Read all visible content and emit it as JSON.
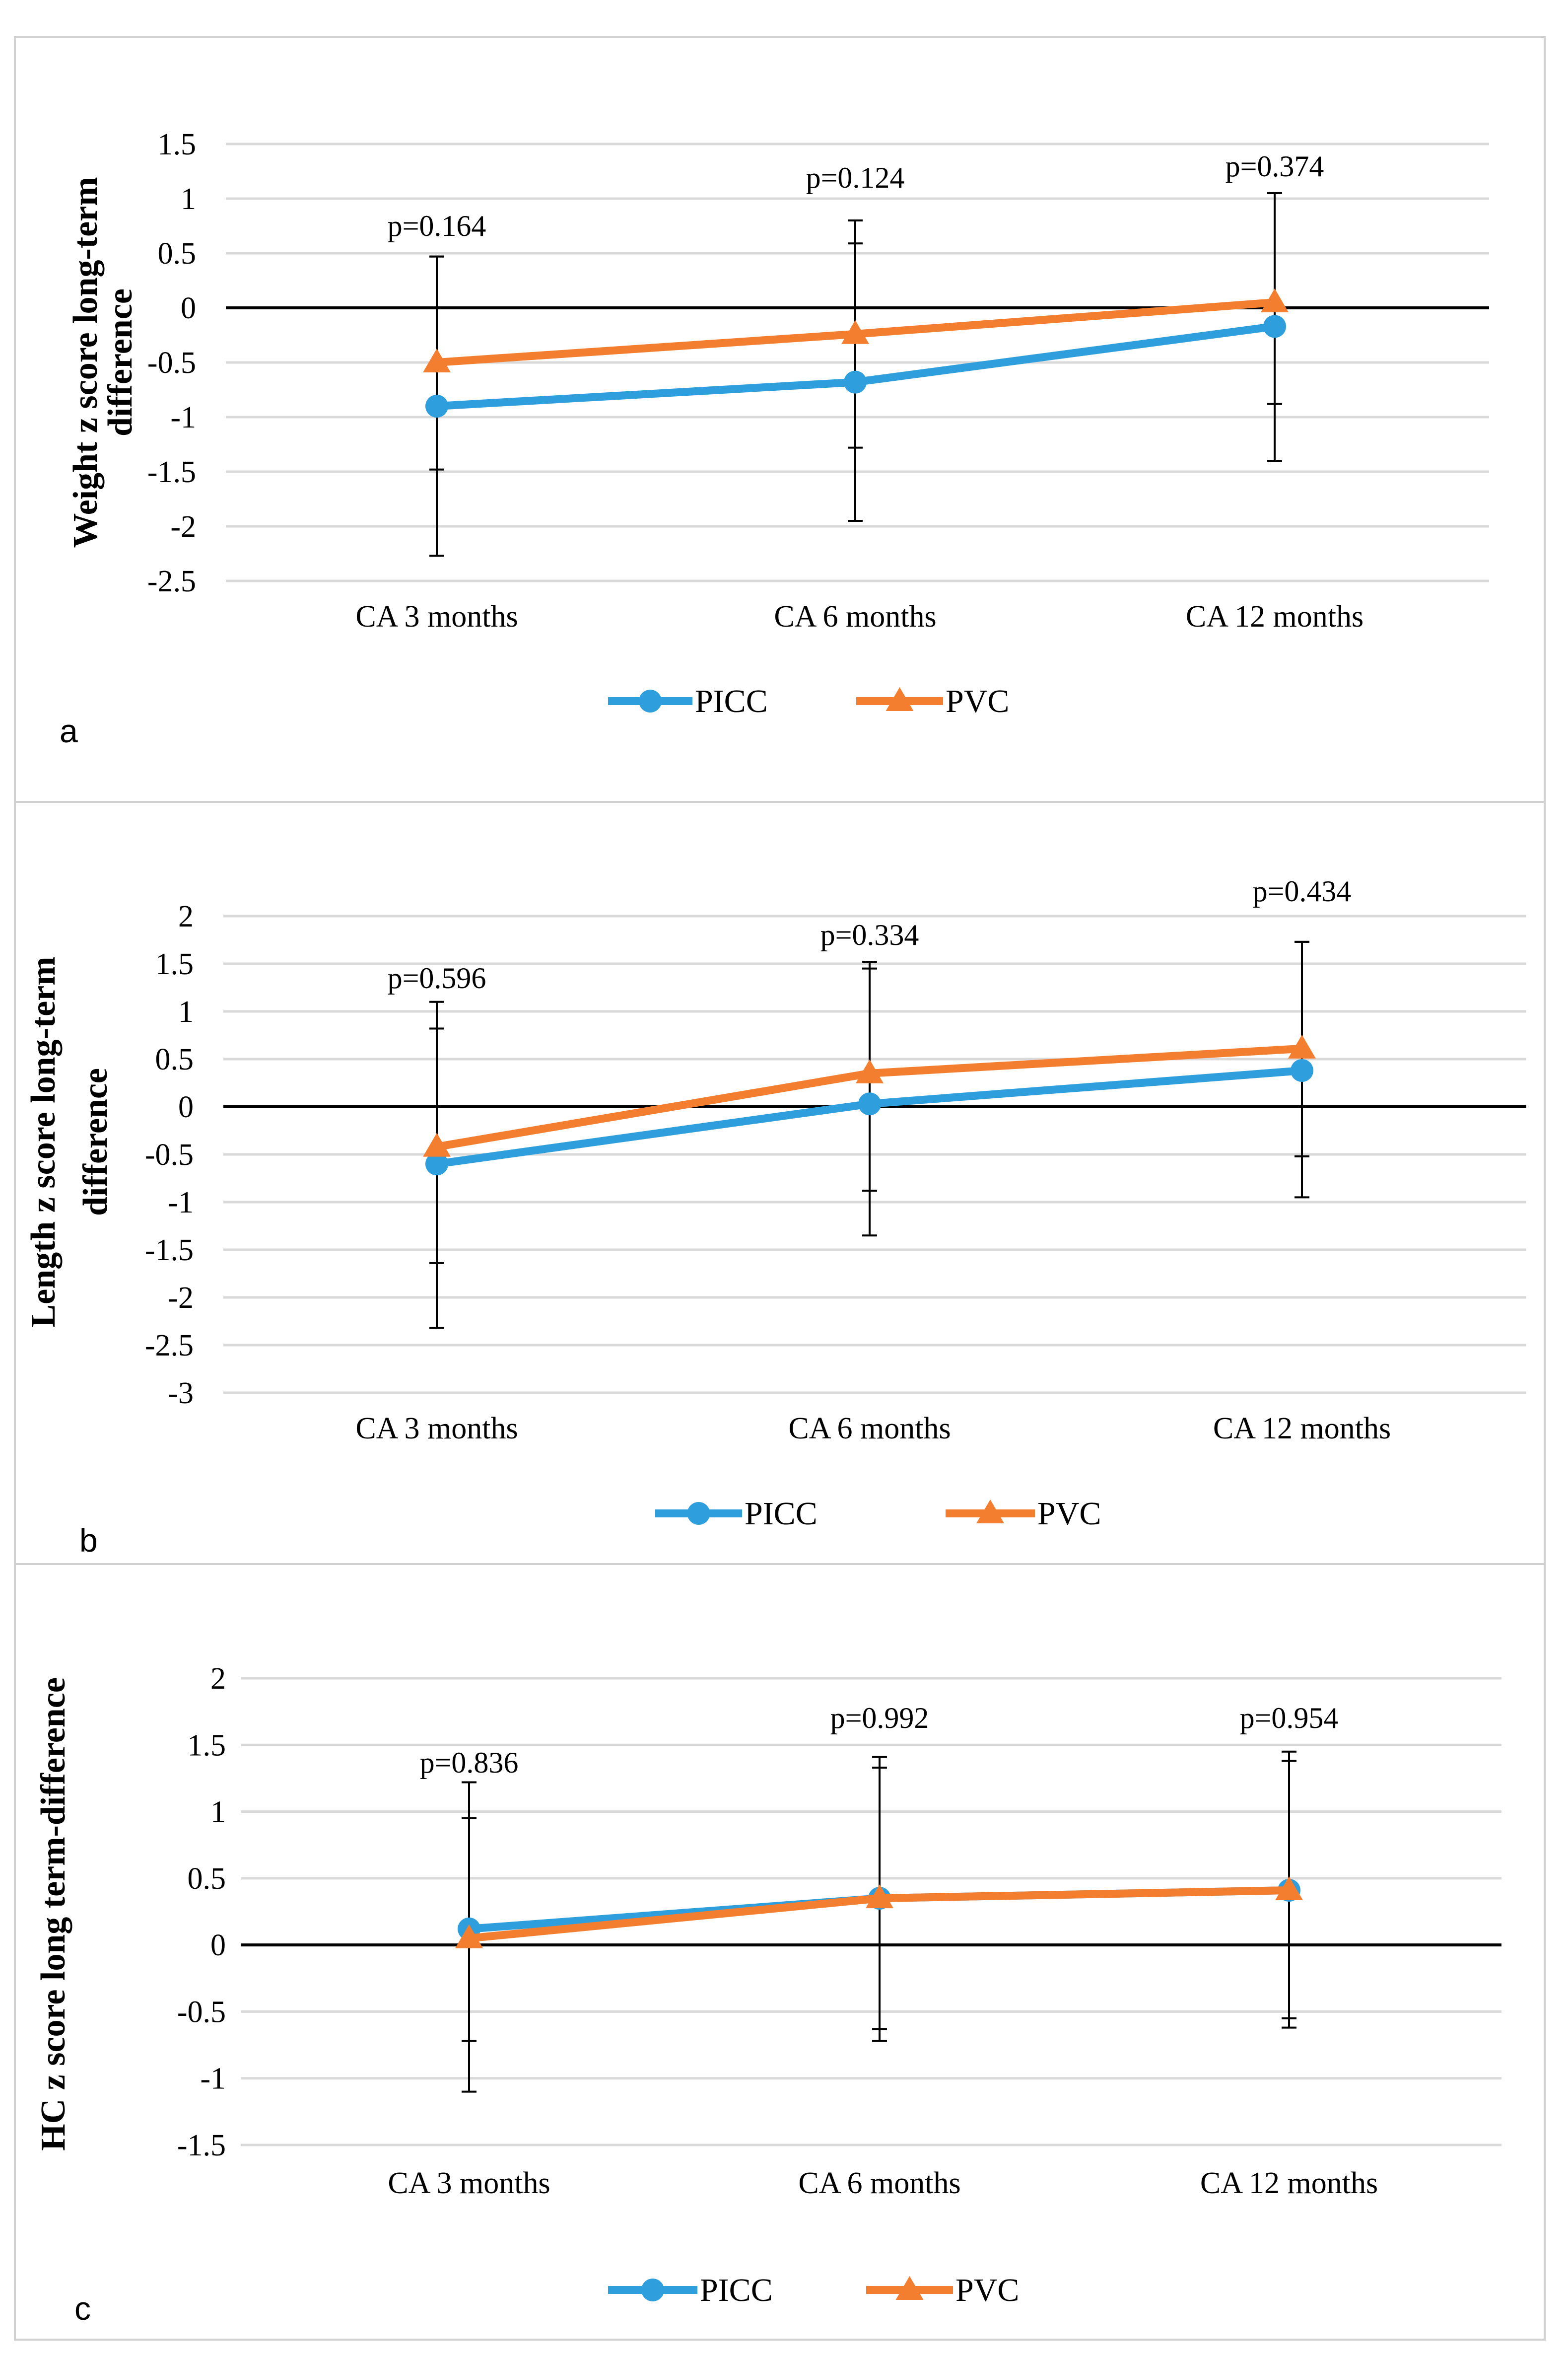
{
  "colors": {
    "picc": "#2E9FDC",
    "pvc": "#F47E30",
    "grid": "#D9D9D9",
    "axis": "#000000",
    "border": "#D0D0D0"
  },
  "chart_data": [
    {
      "type": "line",
      "panel_label": "a",
      "ylabel": "Weight z score long-term difference",
      "ylabel_lines": [
        "Weight z score long-term",
        "difference"
      ],
      "xlabel": "",
      "ylim": [
        -2.5,
        1.5
      ],
      "yticks": [
        1.5,
        1,
        0.5,
        0,
        -0.5,
        -1,
        -1.5,
        -2,
        -2.5
      ],
      "ytick_labels": [
        "1.5",
        "1",
        "0.5",
        "0",
        "-0.5",
        "-1",
        "-1.5",
        "-2",
        "-2.5"
      ],
      "categories": [
        "CA 3 months",
        "CA 6 months",
        "CA 12 months"
      ],
      "series": [
        {
          "name": "PICC",
          "marker": "circle",
          "values": [
            -0.9,
            -0.68,
            -0.17
          ],
          "err_low": [
            -2.27,
            -1.95,
            -1.4
          ],
          "err_high": [
            0.47,
            0.59,
            1.05
          ]
        },
        {
          "name": "PVC",
          "marker": "triangle",
          "values": [
            -0.5,
            -0.24,
            0.05
          ],
          "err_low": [
            -1.48,
            -1.28,
            -0.88
          ],
          "err_high": [
            0.47,
            0.8,
            1.05
          ]
        }
      ],
      "annotations": [
        "p=0.164",
        "p=0.124",
        "p=0.374"
      ],
      "grid": true,
      "legend": "bottom-center"
    },
    {
      "type": "line",
      "panel_label": "b",
      "ylabel": "Length z score long-term difference",
      "ylabel_lines": [
        "Length z score long-term",
        "difference"
      ],
      "xlabel": "",
      "ylim": [
        -3,
        2
      ],
      "yticks": [
        2,
        1.5,
        1,
        0.5,
        0,
        -0.5,
        -1,
        -1.5,
        -2,
        -2.5,
        -3
      ],
      "ytick_labels": [
        "2",
        "1.5",
        "1",
        "0.5",
        "0",
        "-0.5",
        "-1",
        "-1.5",
        "-2",
        "-2.5",
        "-3"
      ],
      "categories": [
        "CA 3 months",
        "CA 6 months",
        "CA 12 months"
      ],
      "series": [
        {
          "name": "PICC",
          "marker": "circle",
          "values": [
            -0.6,
            0.03,
            0.38
          ],
          "err_low": [
            -2.32,
            -1.35,
            -0.95
          ],
          "err_high": [
            1.1,
            1.45,
            1.73
          ]
        },
        {
          "name": "PVC",
          "marker": "triangle",
          "values": [
            -0.42,
            0.35,
            0.61
          ],
          "err_low": [
            -1.64,
            -0.88,
            -0.52
          ],
          "err_high": [
            0.82,
            1.52,
            1.73
          ]
        }
      ],
      "annotations": [
        "p=0.596",
        "p=0.334",
        "p=0.434"
      ],
      "grid": true,
      "legend": "bottom-center"
    },
    {
      "type": "line",
      "panel_label": "c",
      "ylabel": "HC z score long term-difference",
      "ylabel_lines": [
        "HC z score long term-difference"
      ],
      "xlabel": "",
      "ylim": [
        -1.5,
        2
      ],
      "yticks": [
        2,
        1.5,
        1,
        0.5,
        0,
        -0.5,
        -1,
        -1.5
      ],
      "ytick_labels": [
        "2",
        "1.5",
        "1",
        "0.5",
        "0",
        "-0.5",
        "-1",
        "-1.5"
      ],
      "categories": [
        "CA 3 months",
        "CA 6 months",
        "CA 12 months"
      ],
      "series": [
        {
          "name": "PICC",
          "marker": "circle",
          "values": [
            0.12,
            0.35,
            0.41
          ],
          "err_low": [
            -1.1,
            -0.72,
            -0.62
          ],
          "err_high": [
            1.22,
            1.41,
            1.45
          ]
        },
        {
          "name": "PVC",
          "marker": "triangle",
          "values": [
            0.05,
            0.35,
            0.41
          ],
          "err_low": [
            -0.72,
            -0.63,
            -0.55
          ],
          "err_high": [
            0.95,
            1.33,
            1.38
          ]
        }
      ],
      "annotations": [
        "p=0.836",
        "p=0.992",
        "p=0.954"
      ],
      "grid": true,
      "legend": "bottom-center"
    }
  ]
}
